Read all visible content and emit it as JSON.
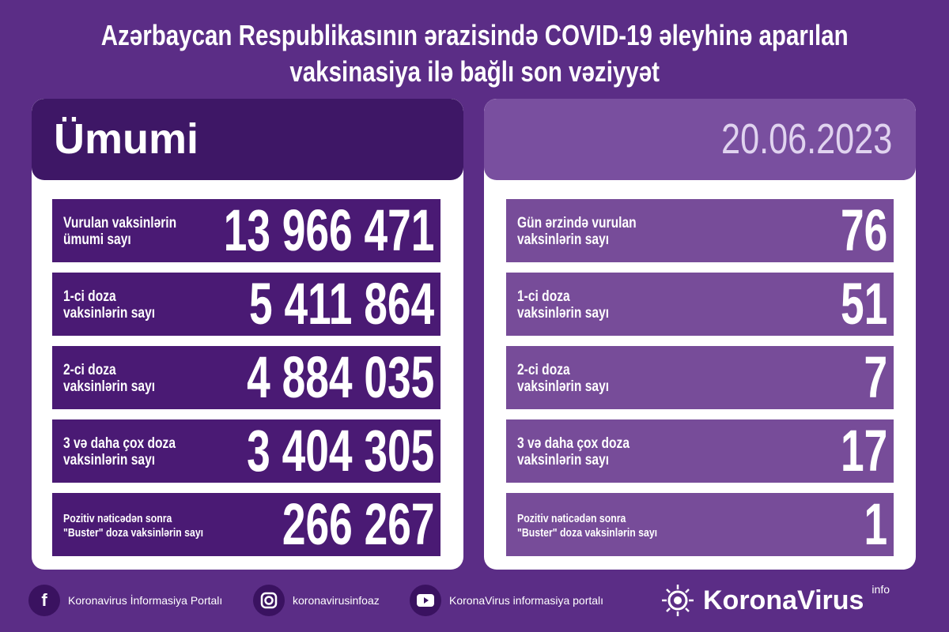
{
  "title": {
    "line1": "Azərbaycan Respublikasının ərazisində COVID-19 əleyhinə aparılan",
    "line2": "vaksinasiya ilə bağlı son vəziyyət"
  },
  "left": {
    "heading": "Ümumi",
    "rows": [
      {
        "label": "Vurulan vaksinlərin\nümumi sayı",
        "value": "13 966 471"
      },
      {
        "label": "1-ci doza\nvaksinlərin sayı",
        "value": "5 411 864"
      },
      {
        "label": "2-ci doza\nvaksinlərin sayı",
        "value": "4 884 035"
      },
      {
        "label": "3 və daha çox doza\nvaksinlərin sayı",
        "value": "3 404 305"
      },
      {
        "label": "Pozitiv nəticədən sonra\n\"Buster\" doza vaksinlərin sayı",
        "value": "266 267"
      }
    ]
  },
  "right": {
    "date": "20.06.2023",
    "rows": [
      {
        "label": "Gün ərzində vurulan\nvaksinlərin sayı",
        "value": "76"
      },
      {
        "label": "1-ci doza\nvaksinlərin sayı",
        "value": "51"
      },
      {
        "label": "2-ci doza\nvaksinlərin sayı",
        "value": "7"
      },
      {
        "label": "3 və daha çox doza\nvaksinlərin sayı",
        "value": "17"
      },
      {
        "label": "Pozitiv nəticədən sonra\n\"Buster\" doza vaksinlərin sayı",
        "value": "1"
      }
    ]
  },
  "footer": {
    "facebook": "Koronavirus İnformasiya Portalı",
    "instagram": "koronavirusinfoaz",
    "youtube": "KoronaVirus informasiya portalı",
    "brand": "KoronaVirus",
    "brand_sup": "info"
  },
  "colors": {
    "background": "#5b2d86",
    "left_row": "#4a1a74",
    "right_row": "#774c99"
  }
}
